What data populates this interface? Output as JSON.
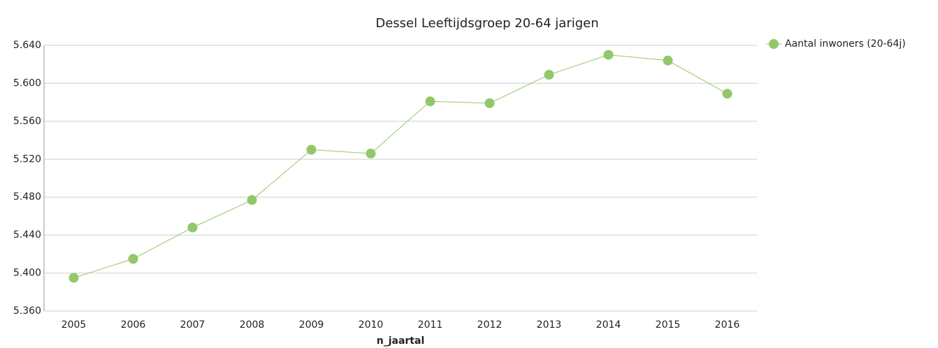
{
  "chart_data": {
    "type": "line",
    "title": "Dessel  Leeftijdsgroep 20-64 jarigen",
    "x_label": "n_jaartal",
    "categories": [
      "2005",
      "2006",
      "2007",
      "2008",
      "2009",
      "2010",
      "2011",
      "2012",
      "2013",
      "2014",
      "2015",
      "2016"
    ],
    "series": [
      {
        "name": "Aantal inwoners  (20-64j)",
        "color": "#92c86a",
        "values": [
          5395,
          5415,
          5448,
          5477,
          5530,
          5526,
          5581,
          5579,
          5609,
          5630,
          5624,
          5589
        ]
      }
    ],
    "ylim": [
      5360,
      5640
    ],
    "yticks": [
      {
        "value": 5360,
        "label": "5.360"
      },
      {
        "value": 5400,
        "label": "5.400"
      },
      {
        "value": 5440,
        "label": "5.440"
      },
      {
        "value": 5480,
        "label": "5.480"
      },
      {
        "value": 5520,
        "label": "5.520"
      },
      {
        "value": 5560,
        "label": "5.560"
      },
      {
        "value": 5600,
        "label": "5.600"
      },
      {
        "value": 5640,
        "label": "5.640"
      }
    ],
    "grid": true,
    "legend": "top-right"
  }
}
